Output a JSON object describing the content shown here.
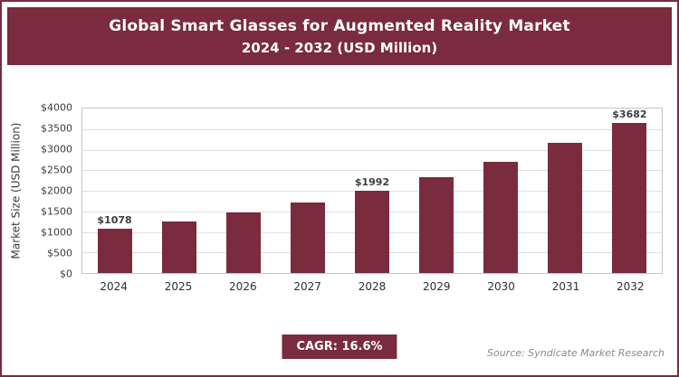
{
  "header": {
    "title_line1": "Global Smart Glasses for Augmented Reality Market",
    "title_line2": "2024 - 2032 (USD Million)"
  },
  "chart_data": {
    "type": "bar",
    "title": "Global Smart Glasses for Augmented Reality Market 2024 - 2032 (USD Million)",
    "categories": [
      "2024",
      "2025",
      "2026",
      "2027",
      "2028",
      "2029",
      "2030",
      "2031",
      "2032"
    ],
    "values": [
      1078,
      1257,
      1465,
      1709,
      1992,
      2322,
      2708,
      3158,
      3682
    ],
    "data_labels": [
      "$1078",
      null,
      null,
      null,
      "$1992",
      null,
      null,
      null,
      "$3682"
    ],
    "xlabel": "",
    "ylabel": "Market Size (USD Million)",
    "ylim": [
      0,
      4000
    ],
    "ytick_step": 500,
    "yticks": [
      "$4000",
      "$3500",
      "$3000",
      "$2500",
      "$2000",
      "$1500",
      "$1000",
      "$500",
      "$0"
    ],
    "bar_color": "#7a2b3d",
    "grid": true,
    "legend": false
  },
  "footer": {
    "cagr_label": "CAGR: 16.6%",
    "source": "Source: Syndicate Market Research"
  }
}
